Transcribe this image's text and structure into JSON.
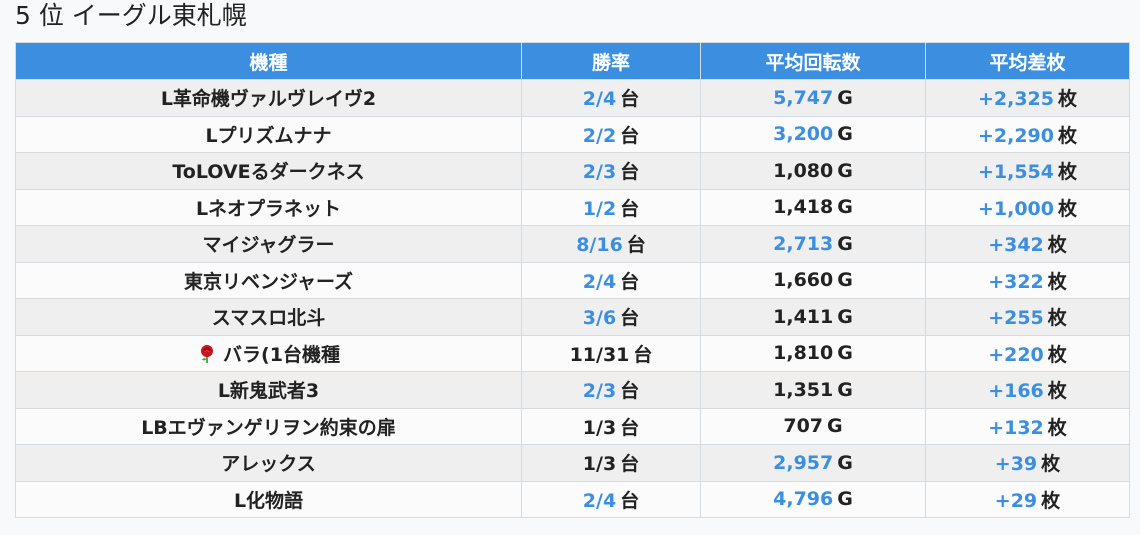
{
  "title": "5 位 イーグル東札幌",
  "table": {
    "headers": {
      "machine": "機種",
      "rate": "勝率",
      "spins": "平均回転数",
      "diff": "平均差枚"
    },
    "rows": [
      {
        "machine": "L革命機ヴァルヴレイヴ2",
        "rate": "2/4",
        "rate_unit": "台",
        "rate_color": "blue",
        "spins": "5,747",
        "spins_unit": "G",
        "spins_color": "blue",
        "diff": "+2,325",
        "diff_unit": "枚"
      },
      {
        "machine": "Lプリズムナナ",
        "rate": "2/2",
        "rate_unit": "台",
        "rate_color": "blue",
        "spins": "3,200",
        "spins_unit": "G",
        "spins_color": "blue",
        "diff": "+2,290",
        "diff_unit": "枚"
      },
      {
        "machine": "ToLOVEるダークネス",
        "rate": "2/3",
        "rate_unit": "台",
        "rate_color": "blue",
        "spins": "1,080",
        "spins_unit": "G",
        "spins_color": "black",
        "diff": "+1,554",
        "diff_unit": "枚"
      },
      {
        "machine": "Lネオプラネット",
        "rate": "1/2",
        "rate_unit": "台",
        "rate_color": "blue",
        "spins": "1,418",
        "spins_unit": "G",
        "spins_color": "black",
        "diff": "+1,000",
        "diff_unit": "枚"
      },
      {
        "machine": "マイジャグラー",
        "rate": "8/16",
        "rate_unit": "台",
        "rate_color": "blue",
        "spins": "2,713",
        "spins_unit": "G",
        "spins_color": "blue",
        "diff": "+342",
        "diff_unit": "枚"
      },
      {
        "machine": "東京リベンジャーズ",
        "rate": "2/4",
        "rate_unit": "台",
        "rate_color": "blue",
        "spins": "1,660",
        "spins_unit": "G",
        "spins_color": "black",
        "diff": "+322",
        "diff_unit": "枚"
      },
      {
        "machine": "スマスロ北斗",
        "rate": "3/6",
        "rate_unit": "台",
        "rate_color": "blue",
        "spins": "1,411",
        "spins_unit": "G",
        "spins_color": "black",
        "diff": "+255",
        "diff_unit": "枚"
      },
      {
        "machine": "バラ(1台機種",
        "icon": "rose-icon",
        "rate": "11/31",
        "rate_unit": "台",
        "rate_color": "black",
        "spins": "1,810",
        "spins_unit": "G",
        "spins_color": "black",
        "diff": "+220",
        "diff_unit": "枚"
      },
      {
        "machine": "L新鬼武者3",
        "rate": "2/3",
        "rate_unit": "台",
        "rate_color": "blue",
        "spins": "1,351",
        "spins_unit": "G",
        "spins_color": "black",
        "diff": "+166",
        "diff_unit": "枚"
      },
      {
        "machine": "LBエヴァンゲリヲン約束の扉",
        "rate": "1/3",
        "rate_unit": "台",
        "rate_color": "black",
        "spins": "707",
        "spins_unit": "G",
        "spins_color": "black",
        "diff": "+132",
        "diff_unit": "枚"
      },
      {
        "machine": "アレックス",
        "rate": "1/3",
        "rate_unit": "台",
        "rate_color": "black",
        "spins": "2,957",
        "spins_unit": "G",
        "spins_color": "blue",
        "diff": "+39",
        "diff_unit": "枚"
      },
      {
        "machine": "L化物語",
        "rate": "2/4",
        "rate_unit": "台",
        "rate_color": "blue",
        "spins": "4,796",
        "spins_unit": "G",
        "spins_color": "blue",
        "diff": "+29",
        "diff_unit": "枚"
      }
    ]
  },
  "colors": {
    "header_bg": "#3c8ee0",
    "accent_blue": "#3c8ee0",
    "text": "#222222"
  }
}
